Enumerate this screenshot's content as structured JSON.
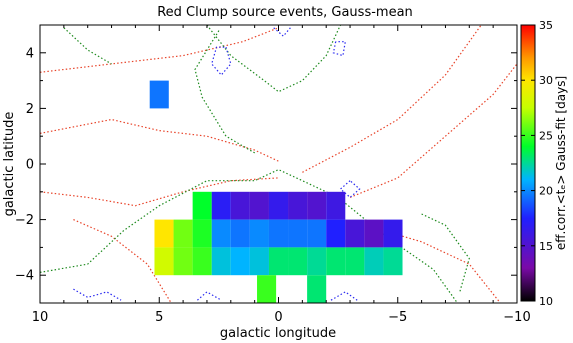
{
  "chart_data": {
    "type": "heatmap",
    "title": "Red Clump source events, Gauss-mean",
    "xlabel": "galactic longitude",
    "ylabel": "galactic latitude",
    "xlim": [
      10,
      -10
    ],
    "ylim": [
      -5,
      5
    ],
    "xticks": [
      10,
      5,
      0,
      -5,
      -10
    ],
    "yticks": [
      4,
      2,
      0,
      -2,
      -4
    ],
    "xtick_labels": [
      "10",
      "5",
      "0",
      "−5",
      "−10"
    ],
    "ytick_labels": [
      "4",
      "2",
      "0",
      "−2",
      "−4"
    ],
    "colorbar": {
      "label": "eff.corr.<tₑ> Gauss-fit [days]",
      "range": [
        10,
        35
      ],
      "ticks": [
        10,
        15,
        20,
        25,
        30,
        35
      ],
      "tick_labels": [
        "10",
        "15",
        "20",
        "25",
        "30",
        "35"
      ]
    },
    "cell_size": [
      0.8,
      1.0
    ],
    "cells": [
      {
        "l": 5.0,
        "b": 2.5,
        "value": 19.5
      },
      {
        "l": 3.2,
        "b": -1.5,
        "value": 24
      },
      {
        "l": 2.4,
        "b": -1.5,
        "value": 17
      },
      {
        "l": 1.6,
        "b": -1.5,
        "value": 15.5
      },
      {
        "l": 0.8,
        "b": -1.5,
        "value": 15
      },
      {
        "l": 0.0,
        "b": -1.5,
        "value": 16.5
      },
      {
        "l": -0.8,
        "b": -1.5,
        "value": 15.5
      },
      {
        "l": -1.6,
        "b": -1.5,
        "value": 15
      },
      {
        "l": -2.4,
        "b": -1.5,
        "value": 16
      },
      {
        "l": 4.8,
        "b": -2.5,
        "value": 30
      },
      {
        "l": 4.0,
        "b": -2.5,
        "value": 26
      },
      {
        "l": 3.2,
        "b": -2.5,
        "value": 24.5
      },
      {
        "l": 2.4,
        "b": -2.5,
        "value": 20
      },
      {
        "l": 1.6,
        "b": -2.5,
        "value": 19.5
      },
      {
        "l": 0.8,
        "b": -2.5,
        "value": 20
      },
      {
        "l": 0.0,
        "b": -2.5,
        "value": 19.5
      },
      {
        "l": -0.8,
        "b": -2.5,
        "value": 19.5
      },
      {
        "l": -1.6,
        "b": -2.5,
        "value": 19.5
      },
      {
        "l": -2.4,
        "b": -2.5,
        "value": 17.5
      },
      {
        "l": -3.2,
        "b": -2.5,
        "value": 15.5
      },
      {
        "l": -4.0,
        "b": -2.5,
        "value": 14.5
      },
      {
        "l": -4.8,
        "b": -2.5,
        "value": 16.5
      },
      {
        "l": 4.8,
        "b": -3.5,
        "value": 28
      },
      {
        "l": 4.0,
        "b": -3.5,
        "value": 26
      },
      {
        "l": 3.2,
        "b": -3.5,
        "value": 25
      },
      {
        "l": 2.4,
        "b": -3.5,
        "value": 21.5
      },
      {
        "l": 1.6,
        "b": -3.5,
        "value": 21
      },
      {
        "l": 0.8,
        "b": -3.5,
        "value": 21.5
      },
      {
        "l": 0.0,
        "b": -3.5,
        "value": 23
      },
      {
        "l": -0.8,
        "b": -3.5,
        "value": 23
      },
      {
        "l": -1.6,
        "b": -3.5,
        "value": 22.5
      },
      {
        "l": -2.4,
        "b": -3.5,
        "value": 23
      },
      {
        "l": -3.2,
        "b": -3.5,
        "value": 23
      },
      {
        "l": -4.0,
        "b": -3.5,
        "value": 22
      },
      {
        "l": -4.8,
        "b": -3.5,
        "value": 22.5
      },
      {
        "l": 0.5,
        "b": -4.5,
        "value": 25
      },
      {
        "l": -1.6,
        "b": -4.5,
        "value": 23
      }
    ],
    "contour_colors": {
      "outer": "#e8442a",
      "middle": "#1e8a1e",
      "inner": "#2a2af0"
    },
    "grid": false
  }
}
